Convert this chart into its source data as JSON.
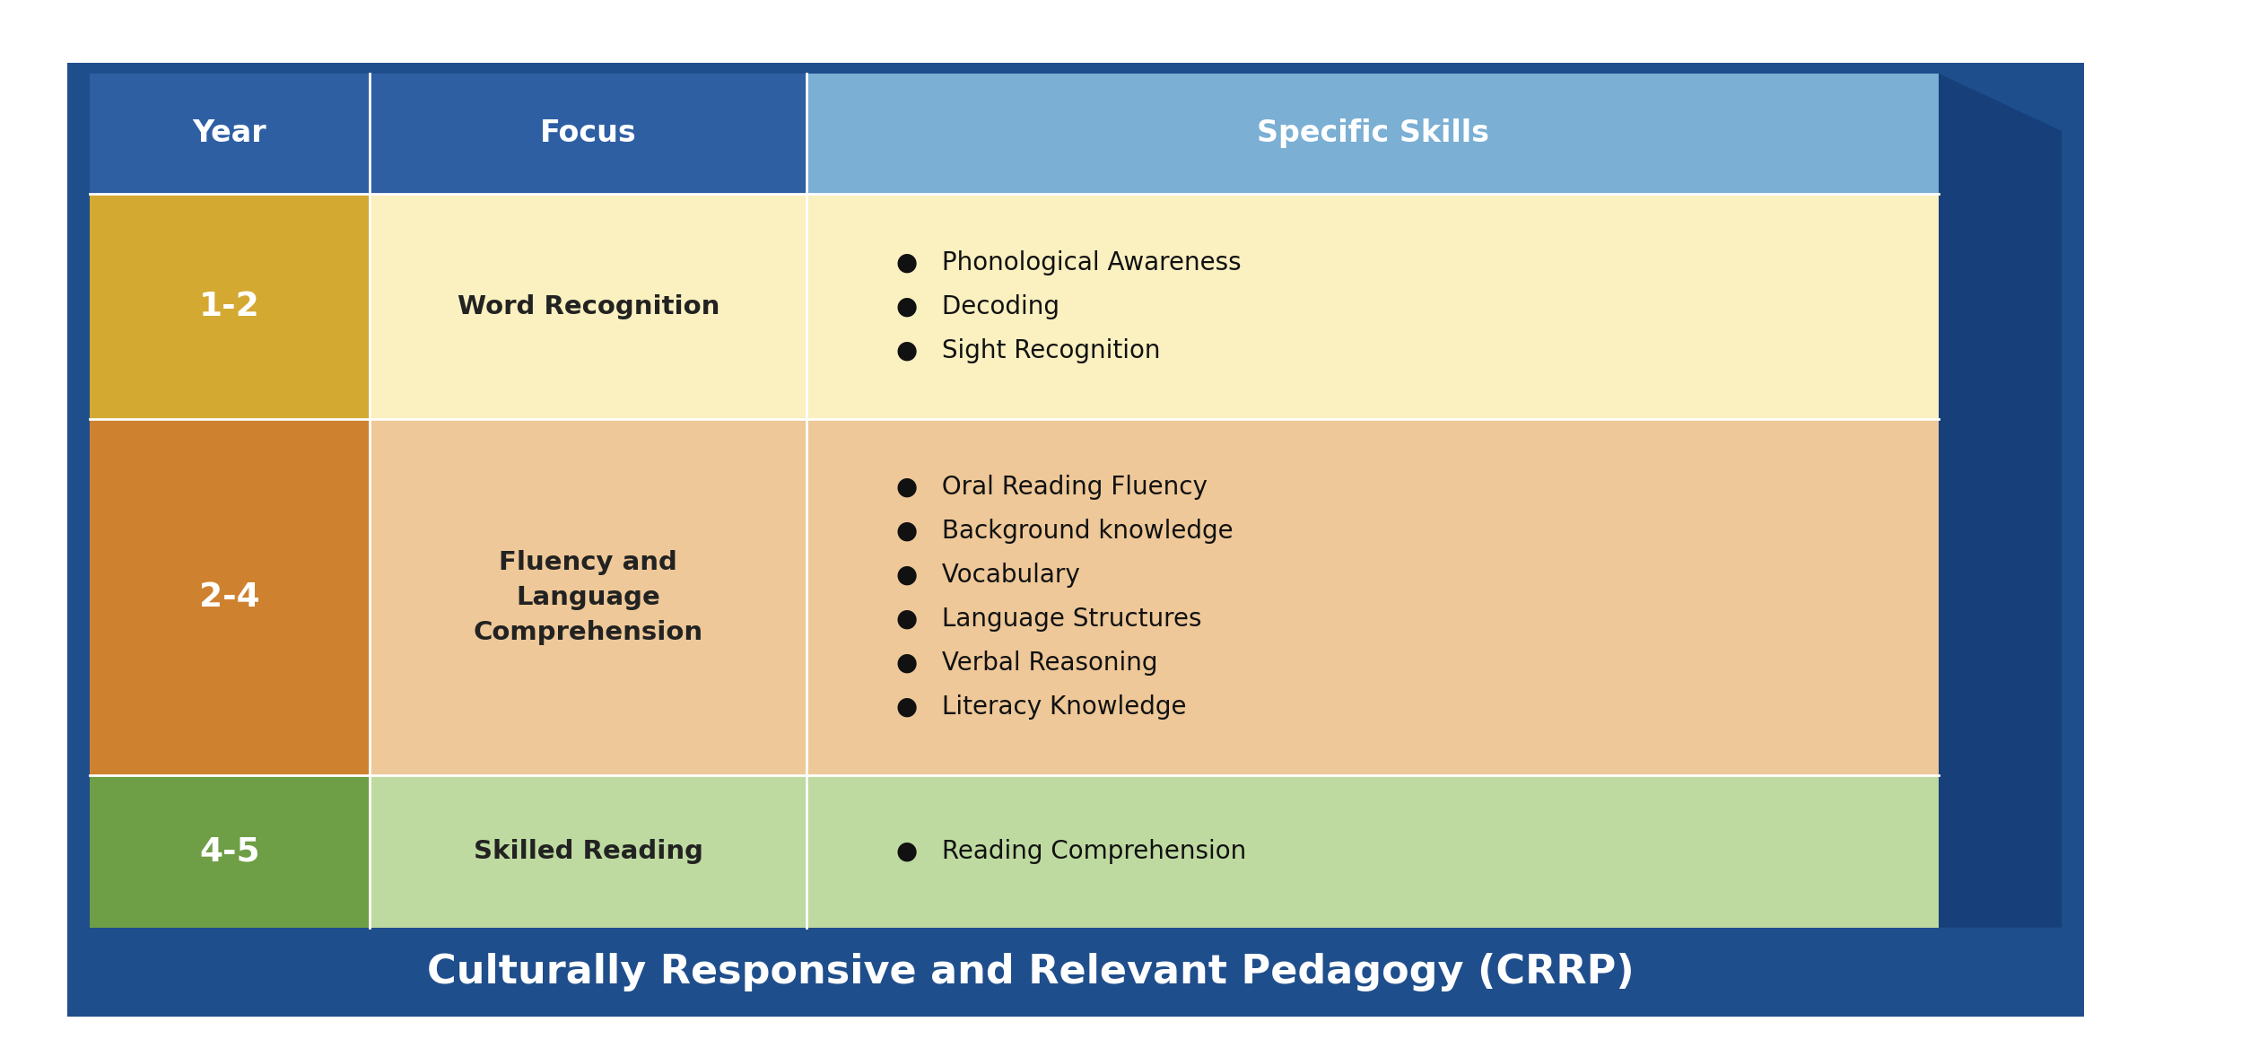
{
  "title_text": "Culturally Responsive and Relevant Pedagogy (CRRP)",
  "header_bg": "#2E5FA3",
  "header_light_bg": "#7BAFD4",
  "header_year_text": "Year",
  "header_focus_text": "Focus",
  "header_skills_text": "Specific Skills",
  "outer_bg": "#1F4E8C",
  "dark_3d": "#17407A",
  "rows": [
    {
      "year": "1-2",
      "year_bg": "#D4A932",
      "focus": "Word Recognition",
      "focus_bg": "#FAF0C0",
      "skills": [
        "Phonological Awareness",
        "Decoding",
        "Sight Recognition"
      ],
      "skills_bg": "#FAF0C0"
    },
    {
      "year": "2-4",
      "year_bg": "#CE8230",
      "focus": "Fluency and\nLanguage\nComprehension",
      "focus_bg": "#EEC898",
      "skills": [
        "Oral Reading Fluency",
        "Background knowledge",
        "Vocabulary",
        "Language Structures",
        "Verbal Reasoning",
        "Literacy Knowledge"
      ],
      "skills_bg": "#EEC898"
    },
    {
      "year": "4-5",
      "year_bg": "#6E9E45",
      "focus": "Skilled Reading",
      "focus_bg": "#BEDAA0",
      "skills": [
        "Reading Comprehension"
      ],
      "skills_bg": "#BEDAA0"
    }
  ],
  "fig_w": 24.98,
  "fig_h": 11.68,
  "dpi": 100
}
